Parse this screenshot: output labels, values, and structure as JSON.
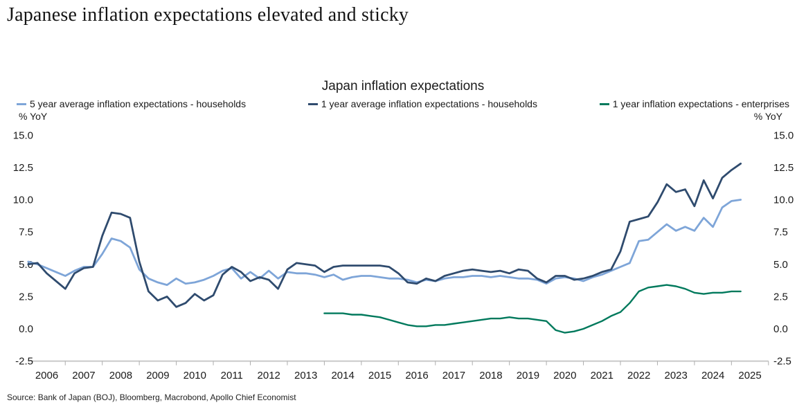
{
  "page": {
    "heading": "Japanese inflation expectations elevated and sticky",
    "source": "Source: Bank of Japan (BOJ), Bloomberg, Macrobond, Apollo Chief Economist"
  },
  "chart_data": {
    "type": "line",
    "title": "Japan inflation expectations",
    "ylabel_left": "% YoY",
    "ylabel_right": "% YoY",
    "ylim": [
      -2.5,
      15.0
    ],
    "yticks": [
      "15.0",
      "12.5",
      "10.0",
      "7.5",
      "5.0",
      "2.5",
      "0.0",
      "-2.5"
    ],
    "xticks": [
      2006,
      2007,
      2008,
      2009,
      2010,
      2011,
      2012,
      2013,
      2014,
      2015,
      2016,
      2017,
      2018,
      2019,
      2020,
      2021,
      2022,
      2023,
      2024,
      2025
    ],
    "x_unit": "year, quarterly observations",
    "grid": false,
    "legend_position": "top",
    "axis_color": "#C9C9C9",
    "tick_color": "#ADADAD",
    "text_color": "#1A1A1A",
    "series": [
      {
        "name": "5 year average inflation expectations - households",
        "color": "#7EA5D8",
        "x_start": 2006.0,
        "x_step": 0.25,
        "values": [
          5.2,
          5.0,
          4.7,
          4.4,
          4.1,
          4.5,
          4.8,
          4.8,
          5.8,
          7.0,
          6.8,
          6.3,
          4.6,
          3.9,
          3.6,
          3.4,
          3.9,
          3.5,
          3.6,
          3.8,
          4.1,
          4.5,
          4.7,
          3.9,
          4.4,
          3.9,
          4.5,
          3.9,
          4.4,
          4.3,
          4.3,
          4.2,
          4.0,
          4.2,
          3.8,
          4.0,
          4.1,
          4.1,
          4.0,
          3.9,
          3.9,
          3.8,
          3.6,
          3.8,
          3.7,
          3.9,
          4.0,
          4.0,
          4.1,
          4.1,
          4.0,
          4.1,
          4.0,
          3.9,
          3.9,
          3.8,
          3.5,
          3.9,
          4.0,
          3.9,
          3.7,
          4.0,
          4.2,
          4.5,
          4.8,
          5.1,
          6.8,
          6.9,
          7.5,
          8.1,
          7.6,
          7.9,
          7.6,
          8.6,
          7.9,
          9.4,
          9.9,
          10.0
        ]
      },
      {
        "name": "1 year average inflation expectations - households",
        "color": "#2F4B6E",
        "x_start": 2006.0,
        "x_step": 0.25,
        "values": [
          5.0,
          5.1,
          4.3,
          3.7,
          3.1,
          4.3,
          4.7,
          4.8,
          7.2,
          9.0,
          8.9,
          8.6,
          5.2,
          2.9,
          2.2,
          2.5,
          1.7,
          2.0,
          2.7,
          2.2,
          2.6,
          4.2,
          4.8,
          4.4,
          3.7,
          4.0,
          3.8,
          3.1,
          4.6,
          5.1,
          5.0,
          4.9,
          4.4,
          4.8,
          4.9,
          4.9,
          4.9,
          4.9,
          4.9,
          4.8,
          4.3,
          3.6,
          3.5,
          3.9,
          3.7,
          4.1,
          4.3,
          4.5,
          4.6,
          4.5,
          4.4,
          4.5,
          4.3,
          4.6,
          4.5,
          3.9,
          3.6,
          4.1,
          4.1,
          3.8,
          3.9,
          4.1,
          4.4,
          4.6,
          6.0,
          8.3,
          8.5,
          8.7,
          9.8,
          11.2,
          10.6,
          10.8,
          9.5,
          11.5,
          10.1,
          11.7,
          12.3,
          12.8
        ]
      },
      {
        "name": "1 year inflation expectations - enterprises",
        "color": "#00795C",
        "x_start": 2014.0,
        "x_step": 0.25,
        "values": [
          1.2,
          1.2,
          1.2,
          1.1,
          1.1,
          1.0,
          0.9,
          0.7,
          0.5,
          0.3,
          0.2,
          0.2,
          0.3,
          0.3,
          0.4,
          0.5,
          0.6,
          0.7,
          0.8,
          0.8,
          0.9,
          0.8,
          0.8,
          0.7,
          0.6,
          -0.1,
          -0.3,
          -0.2,
          0.0,
          0.3,
          0.6,
          1.0,
          1.3,
          2.0,
          2.9,
          3.2,
          3.3,
          3.4,
          3.3,
          3.1,
          2.8,
          2.7,
          2.8,
          2.8,
          2.9,
          2.9
        ]
      }
    ]
  }
}
